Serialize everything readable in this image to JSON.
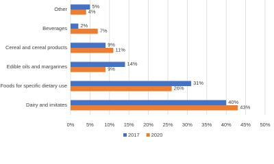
{
  "chart_data": {
    "type": "hbar",
    "categories": [
      "Other",
      "Beverages",
      "Cereal and cereal products",
      "Edible oils and margarines",
      "Foods for specific dietary use",
      "Dairy and imitates"
    ],
    "series": [
      {
        "name": "2017",
        "color": "#4472c4",
        "values": [
          5,
          2,
          9,
          14,
          31,
          40
        ],
        "value_labels": [
          "5%",
          "2%",
          "9%",
          "14%",
          "31%",
          "40%"
        ]
      },
      {
        "name": "2020",
        "color": "#ed7d31",
        "values": [
          4,
          7,
          11,
          9,
          26,
          43
        ],
        "value_labels": [
          "4%",
          "7%",
          "11%",
          "9%",
          "26%",
          "43%"
        ]
      }
    ],
    "xlim": [
      0,
      50
    ],
    "xticks": [
      {
        "value": 0,
        "label": "0%"
      },
      {
        "value": 5,
        "label": "5%"
      },
      {
        "value": 10,
        "label": "10%"
      },
      {
        "value": 15,
        "label": "15%"
      },
      {
        "value": 20,
        "label": "20%"
      },
      {
        "value": 25,
        "label": "25%"
      },
      {
        "value": 30,
        "label": "30%"
      },
      {
        "value": 35,
        "label": "35%"
      },
      {
        "value": 40,
        "label": "40%"
      },
      {
        "value": 45,
        "label": "45%"
      },
      {
        "value": 50,
        "label": "50%"
      }
    ],
    "grid": true,
    "legend": "bottom"
  }
}
